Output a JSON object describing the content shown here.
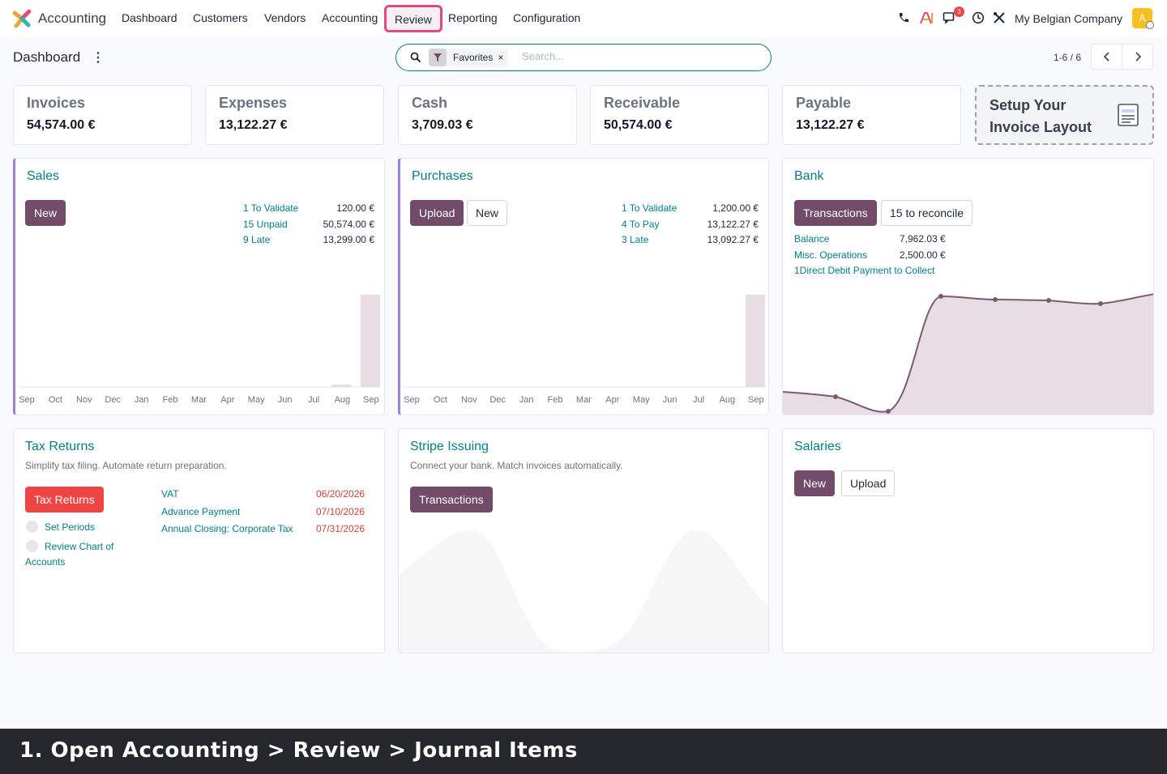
{
  "app": {
    "name": "Accounting",
    "company": "My Belgian Company",
    "avatar_initial": "A",
    "notification_count": "3"
  },
  "menu": [
    "Dashboard",
    "Customers",
    "Vendors",
    "Accounting",
    "Review",
    "Reporting",
    "Configuration"
  ],
  "control": {
    "breadcrumb": "Dashboard",
    "search_placeholder": "Search...",
    "facet": "Favorites",
    "facet_remove": "×",
    "pager": "1-6 / 6"
  },
  "kpis": [
    {
      "label": "Invoices",
      "value": "54,574.00 €"
    },
    {
      "label": "Expenses",
      "value": "13,122.27 €"
    },
    {
      "label": "Cash",
      "value": "3,709.03 €"
    },
    {
      "label": "Receivable",
      "value": "50,574.00 €"
    },
    {
      "label": "Payable",
      "value": "13,122.27 €"
    }
  ],
  "setup": {
    "line1": "Setup Your",
    "line2": "Invoice Layout"
  },
  "months": [
    "Sep",
    "Oct",
    "Nov",
    "Dec",
    "Jan",
    "Feb",
    "Mar",
    "Apr",
    "May",
    "Jun",
    "Jul",
    "Aug",
    "Sep"
  ],
  "sales": {
    "title": "Sales",
    "new_label": "New",
    "stats": [
      {
        "label": "1 To Validate",
        "value": "120.00 €"
      },
      {
        "label": "15 Unpaid",
        "value": "50,574.00 €"
      },
      {
        "label": "9 Late",
        "value": "13,299.00 €"
      }
    ]
  },
  "purchases": {
    "title": "Purchases",
    "upload_label": "Upload",
    "new_label": "New",
    "stats": [
      {
        "label": "1 To Validate",
        "value": "1,200.00 €"
      },
      {
        "label": "4 To Pay",
        "value": "13,122.27 €"
      },
      {
        "label": "3 Late",
        "value": "13,092.27 €"
      }
    ]
  },
  "bank": {
    "title": "Bank",
    "transactions_label": "Transactions",
    "reconcile_label": "15 to reconcile",
    "stats": [
      {
        "label": "Balance",
        "value": "7,962.03 €"
      },
      {
        "label": "Misc. Operations",
        "value": "2,500.00 €"
      }
    ],
    "direct_debit": "1Direct Debit Payment to Collect"
  },
  "tax": {
    "title": "Tax Returns",
    "subtitle": "Simplify tax filing. Automate return preparation.",
    "button": "Tax Returns",
    "checks": [
      "Set Periods",
      "Review Chart of",
      "Accounts"
    ],
    "deadlines": [
      {
        "label": "VAT",
        "date": "06/20/2026"
      },
      {
        "label": "Advance Payment",
        "date": "07/10/2026"
      },
      {
        "label": "Annual Closing: Corporate Tax",
        "date": "07/31/2026"
      }
    ]
  },
  "stripe": {
    "title": "Stripe Issuing",
    "subtitle": "Connect your bank. Match invoices automatically.",
    "button": "Transactions"
  },
  "salaries": {
    "title": "Salaries",
    "new_label": "New",
    "upload_label": "Upload"
  },
  "caption": "1. Open Accounting > Review > Journal Items",
  "colors": {
    "accent": "#714b67",
    "teal": "#017e84",
    "highlight": "#e5487d"
  }
}
